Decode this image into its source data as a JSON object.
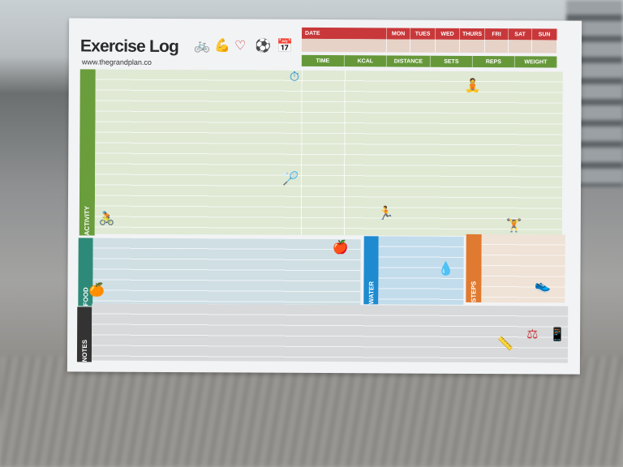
{
  "title": "Exercise Log",
  "url": "www.thegrandplan.co",
  "date_row": {
    "label": "DATE",
    "days": [
      "MON",
      "TUES",
      "WED",
      "THURS",
      "FRI",
      "SAT",
      "SUN"
    ]
  },
  "metrics": [
    "TIME",
    "KCAL",
    "DISTANCE",
    "SETS",
    "REPS",
    "WEIGHT"
  ],
  "sections": {
    "activity": "ACTIVITY",
    "food": "FOOD",
    "water": "WATER",
    "steps": "STEPS",
    "notes": "NOTES"
  },
  "colors": {
    "date": "#c8383a",
    "metrics": "#66983a",
    "activity": "#6a9d3c",
    "food": "#2e8a78",
    "water": "#1e8ad0",
    "steps": "#e07a30",
    "notes": "#333333"
  }
}
